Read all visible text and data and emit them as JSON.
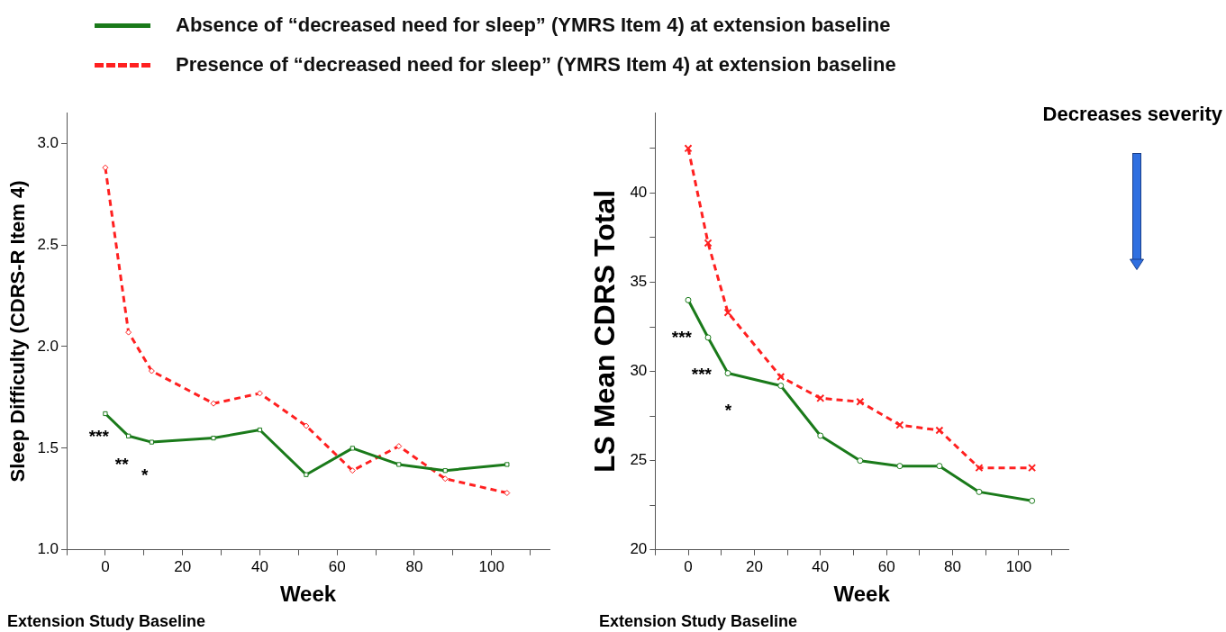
{
  "chart_data": [
    {
      "type": "line",
      "legend": "top",
      "xlabel": "Week",
      "ylabel": "Sleep Difficulty (CDRS-R Item 4)",
      "x": [
        0,
        6,
        12,
        28,
        40,
        52,
        64,
        76,
        88,
        104
      ],
      "xlim": [
        -10,
        115
      ],
      "xticks": [
        {
          "value": -10,
          "label": null
        },
        0,
        {
          "value": 10,
          "label": null
        },
        20,
        {
          "value": 30,
          "label": null
        },
        40,
        {
          "value": 50,
          "label": null
        },
        60,
        {
          "value": 70,
          "label": null
        },
        80,
        {
          "value": 90,
          "label": null
        },
        100,
        {
          "value": 110,
          "label": null
        }
      ],
      "ylim": [
        1.0,
        3.15
      ],
      "yticks": [
        {
          "value": 1.0,
          "label": "1.0"
        },
        1.5,
        {
          "value": 2.0,
          "label": "2.0"
        },
        2.5,
        {
          "value": 3.0,
          "label": "3.0"
        }
      ],
      "series": [
        {
          "name": "Absence of “decreased need for sleep” (YMRS Item 4) at extension baseline",
          "color": "#1a7a1a",
          "line_style": "solid",
          "marker": "square",
          "values": [
            1.67,
            1.56,
            1.53,
            1.55,
            1.59,
            1.37,
            1.5,
            1.42,
            1.39,
            1.42
          ]
        },
        {
          "name": "Presence of “decreased need for sleep” (YMRS Item 4) at extension baseline",
          "color": "#ff2020",
          "line_style": "dashed",
          "marker": "diamond",
          "values": [
            2.88,
            2.07,
            1.88,
            1.72,
            1.77,
            1.61,
            1.39,
            1.51,
            1.35,
            1.28
          ]
        }
      ],
      "annotations": [
        "Extension Study Baseline",
        {
          "text": "***",
          "x": 0,
          "y": 1.67
        },
        {
          "text": "**",
          "x": 6,
          "y": 1.56
        },
        {
          "text": "*",
          "x": 12,
          "y": 1.53
        }
      ]
    },
    {
      "type": "line",
      "xlabel": "Week",
      "ylabel": "LS Mean CDRS Total",
      "x": [
        0,
        6,
        12,
        28,
        40,
        52,
        64,
        76,
        88,
        104
      ],
      "xlim": [
        -10,
        115
      ],
      "xticks": [
        {
          "value": -10,
          "label": null
        },
        0,
        {
          "value": 10,
          "label": null
        },
        20,
        {
          "value": 30,
          "label": null
        },
        40,
        {
          "value": 50,
          "label": null
        },
        60,
        {
          "value": 70,
          "label": null
        },
        80,
        {
          "value": 90,
          "label": null
        },
        100,
        {
          "value": 110,
          "label": null
        }
      ],
      "ylim": [
        20,
        44.5
      ],
      "yticks": [
        20,
        {
          "value": 22.5,
          "label": null
        },
        25,
        {
          "value": 27.5,
          "label": null
        },
        30,
        {
          "value": 32.5,
          "label": null
        },
        35,
        {
          "value": 37.5,
          "label": null
        },
        40,
        {
          "value": 42.5,
          "label": null
        }
      ],
      "series": [
        {
          "color": "#1a7a1a",
          "line_style": "solid",
          "marker": "circle",
          "values": [
            34.0,
            31.9,
            29.9,
            29.2,
            26.4,
            25.0,
            24.7,
            24.7,
            23.25,
            22.75
          ]
        },
        {
          "color": "#ff2020",
          "line_style": "dashed",
          "marker": "cross",
          "values": [
            42.5,
            37.2,
            33.3,
            29.7,
            28.5,
            28.3,
            27.0,
            26.7,
            24.6,
            24.6
          ]
        }
      ],
      "annotations": [
        "Extension Study Baseline",
        "Decreases severity",
        {
          "text": "***",
          "x": 0,
          "y": 34.0
        },
        {
          "text": "***",
          "x": 6,
          "y": 31.9
        },
        {
          "text": "*",
          "x": 12,
          "y": 29.9
        }
      ]
    }
  ]
}
